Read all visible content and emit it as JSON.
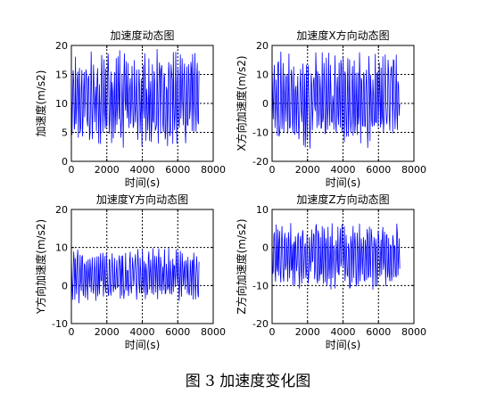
{
  "caption": "图 3 加速度变化图",
  "colors": {
    "line": "#0000ff",
    "axis": "#000000",
    "grid": "#000000"
  },
  "chart_data": [
    {
      "type": "line",
      "title": "加速度动态图",
      "xlabel": "时间(s)",
      "ylabel": "加速度(m/s2)",
      "xlim": [
        0,
        8000
      ],
      "ylim": [
        0,
        20
      ],
      "xticks": [
        0,
        2000,
        4000,
        6000,
        8000
      ],
      "yticks": [
        0,
        5,
        10,
        15,
        20
      ],
      "grid": true,
      "series": [
        {
          "y_range_observed": [
            2,
            19.5
          ],
          "x_range_observed": [
            0,
            7200
          ],
          "approx_points": 220,
          "style": "solid oscillating signal"
        }
      ]
    },
    {
      "type": "line",
      "title": "加速度X方向动态图",
      "xlabel": "时间(s)",
      "ylabel": "X方向加速度(m/s2)",
      "xlim": [
        0,
        8000
      ],
      "ylim": [
        -20,
        20
      ],
      "xticks": [
        0,
        2000,
        4000,
        6000,
        8000
      ],
      "yticks": [
        -20,
        -10,
        0,
        10,
        20
      ],
      "grid": true,
      "series": [
        {
          "y_range_observed": [
            -16,
            18
          ],
          "x_range_observed": [
            0,
            7200
          ],
          "approx_points": 220,
          "style": "solid oscillating signal"
        }
      ]
    },
    {
      "type": "line",
      "title": "加速度Y方向动态图",
      "xlabel": "时间(s)",
      "ylabel": "Y方向加速度(m/s2)",
      "xlim": [
        0,
        8000
      ],
      "ylim": [
        -10,
        20
      ],
      "xticks": [
        0,
        2000,
        4000,
        6000,
        8000
      ],
      "yticks": [
        -10,
        0,
        10,
        20
      ],
      "grid": true,
      "series": [
        {
          "y_range_observed": [
            -5,
            10
          ],
          "x_range_observed": [
            0,
            7200
          ],
          "approx_points": 220,
          "style": "solid oscillating signal"
        }
      ]
    },
    {
      "type": "line",
      "title": "加速度Z方向动态图",
      "xlabel": "时间(s)",
      "ylabel": "Z方向加速度(m/s2)",
      "xlim": [
        0,
        8000
      ],
      "ylim": [
        -20,
        10
      ],
      "xticks": [
        0,
        2000,
        4000,
        6000,
        8000
      ],
      "yticks": [
        -20,
        -10,
        0,
        10
      ],
      "grid": true,
      "series": [
        {
          "y_range_observed": [
            -12,
            7
          ],
          "x_range_observed": [
            0,
            7200
          ],
          "approx_points": 220,
          "style": "solid oscillating signal"
        }
      ]
    }
  ]
}
